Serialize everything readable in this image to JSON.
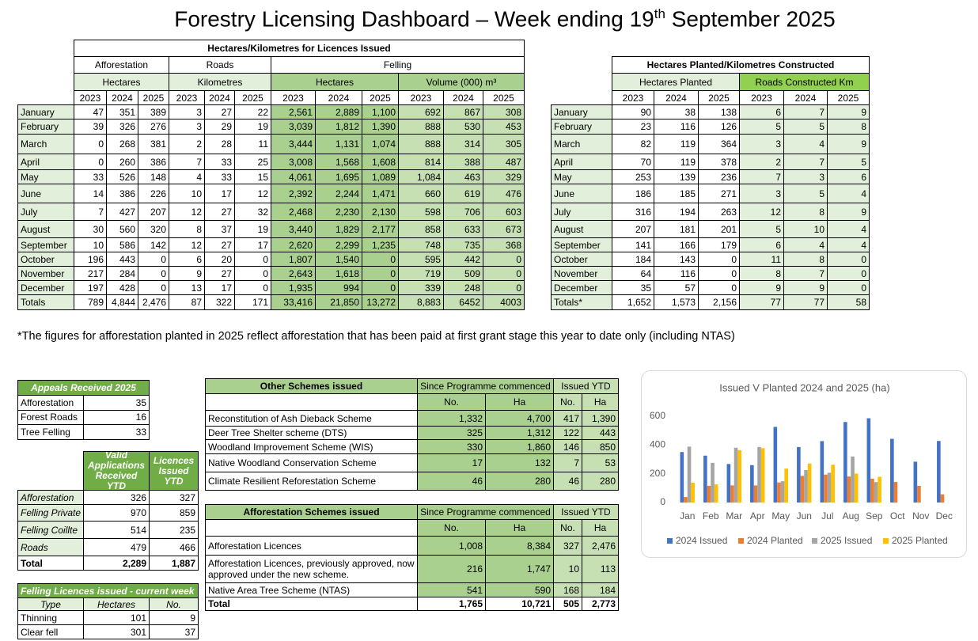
{
  "title": {
    "main": "Forestry Licensing Dashboard – Week ending 19",
    "sup": "th",
    "rest": "September 2025"
  },
  "licences_table": {
    "title": "Hectares/Kilometres for Licences Issued",
    "groups": [
      "Afforestation",
      "Roads",
      "Felling"
    ],
    "units": [
      "Hectares",
      "Kilometres",
      "Hectares",
      "Volume (000) m³"
    ],
    "years": [
      "2023",
      "2024",
      "2025",
      "2023",
      "2024",
      "2025",
      "2023",
      "2024",
      "2025",
      "2023",
      "2024",
      "2025"
    ],
    "rows": [
      {
        "label": "January",
        "values": [
          "47",
          "351",
          "389",
          "3",
          "27",
          "22",
          "2,561",
          "2,889",
          "1,100",
          "692",
          "867",
          "308"
        ]
      },
      {
        "label": "February",
        "values": [
          "39",
          "326",
          "276",
          "3",
          "29",
          "19",
          "3,039",
          "1,812",
          "1,390",
          "888",
          "530",
          "453"
        ]
      },
      {
        "label": "March",
        "values": [
          "0",
          "268",
          "381",
          "2",
          "28",
          "11",
          "3,444",
          "1,131",
          "1,074",
          "888",
          "314",
          "305"
        ]
      },
      {
        "label": "April",
        "values": [
          "0",
          "260",
          "386",
          "7",
          "33",
          "25",
          "3,008",
          "1,568",
          "1,608",
          "814",
          "388",
          "487"
        ]
      },
      {
        "label": "May",
        "values": [
          "33",
          "526",
          "148",
          "4",
          "33",
          "15",
          "4,061",
          "1,695",
          "1,089",
          "1,084",
          "463",
          "329"
        ]
      },
      {
        "label": "June",
        "values": [
          "14",
          "386",
          "226",
          "10",
          "17",
          "12",
          "2,392",
          "2,244",
          "1,471",
          "660",
          "619",
          "476"
        ]
      },
      {
        "label": "July",
        "values": [
          "7",
          "427",
          "207",
          "12",
          "27",
          "32",
          "2,468",
          "2,230",
          "2,130",
          "598",
          "706",
          "603"
        ]
      },
      {
        "label": "August",
        "values": [
          "30",
          "560",
          "320",
          "8",
          "37",
          "19",
          "3,440",
          "1,829",
          "2,177",
          "858",
          "633",
          "673"
        ]
      },
      {
        "label": "September",
        "values": [
          "10",
          "586",
          "142",
          "12",
          "27",
          "17",
          "2,620",
          "2,299",
          "1,235",
          "748",
          "735",
          "368"
        ]
      },
      {
        "label": "October",
        "values": [
          "196",
          "443",
          "0",
          "6",
          "20",
          "0",
          "1,807",
          "1,540",
          "0",
          "595",
          "442",
          "0"
        ]
      },
      {
        "label": "November",
        "values": [
          "217",
          "284",
          "0",
          "9",
          "27",
          "0",
          "2,643",
          "1,618",
          "0",
          "719",
          "509",
          "0"
        ]
      },
      {
        "label": "December",
        "values": [
          "197",
          "428",
          "0",
          "13",
          "17",
          "0",
          "1,935",
          "994",
          "0",
          "339",
          "248",
          "0"
        ]
      },
      {
        "label": "Totals",
        "values": [
          "789",
          "4,844",
          "2,476",
          "87",
          "322",
          "171",
          "33,416",
          "21,850",
          "13,272",
          "8,883",
          "6452",
          "4003"
        ]
      }
    ]
  },
  "planted_table": {
    "title": "Hectares Planted/Kilometres Constructed",
    "units": [
      "Hectares Planted",
      "Roads Constructed Km"
    ],
    "years": [
      "2023",
      "2024",
      "2025",
      "2023",
      "2024",
      "2025"
    ],
    "rows": [
      {
        "label": "January",
        "values": [
          "90",
          "38",
          "138",
          "6",
          "7",
          "9"
        ]
      },
      {
        "label": "February",
        "values": [
          "23",
          "116",
          "126",
          "5",
          "5",
          "8"
        ]
      },
      {
        "label": "March",
        "values": [
          "82",
          "119",
          "364",
          "3",
          "4",
          "9"
        ]
      },
      {
        "label": "April",
        "values": [
          "70",
          "119",
          "378",
          "2",
          "7",
          "5"
        ]
      },
      {
        "label": "May",
        "values": [
          "253",
          "139",
          "236",
          "7",
          "3",
          "6"
        ]
      },
      {
        "label": "June",
        "values": [
          "186",
          "185",
          "271",
          "3",
          "5",
          "4"
        ]
      },
      {
        "label": "July",
        "values": [
          "316",
          "194",
          "263",
          "12",
          "8",
          "9"
        ]
      },
      {
        "label": "August",
        "values": [
          "207",
          "181",
          "201",
          "5",
          "10",
          "4"
        ]
      },
      {
        "label": "September",
        "values": [
          "141",
          "166",
          "179",
          "6",
          "4",
          "4"
        ]
      },
      {
        "label": "October",
        "values": [
          "184",
          "143",
          "0",
          "11",
          "8",
          "0"
        ]
      },
      {
        "label": "November",
        "values": [
          "64",
          "116",
          "0",
          "8",
          "7",
          "0"
        ]
      },
      {
        "label": "December",
        "values": [
          "35",
          "57",
          "0",
          "9",
          "9",
          "0"
        ]
      },
      {
        "label": "Totals*",
        "values": [
          "1,652",
          "1,573",
          "2,156",
          "77",
          "77",
          "58"
        ]
      }
    ]
  },
  "footnote": "*The figures for afforestation planted in 2025 reflect afforestation that has been paid at first grant stage this year to date only (including NTAS)",
  "appeals": {
    "title": "Appeals Received 2025",
    "rows": [
      {
        "label": "Afforestation",
        "value": "35"
      },
      {
        "label": "Forest Roads",
        "value": "16"
      },
      {
        "label": "Tree Felling",
        "value": "33"
      }
    ]
  },
  "applications": {
    "headers": [
      "Valid Applications Received YTD",
      "Licences Issued YTD"
    ],
    "rows": [
      {
        "label": "Afforestation",
        "values": [
          "326",
          "327"
        ]
      },
      {
        "label": "Felling Private",
        "values": [
          "970",
          "859"
        ]
      },
      {
        "label": "Felling Coillte",
        "values": [
          "514",
          "235"
        ]
      },
      {
        "label": "Roads",
        "values": [
          "479",
          "466"
        ]
      },
      {
        "label": "Total",
        "values": [
          "2,289",
          "1,887"
        ]
      }
    ]
  },
  "felling_week": {
    "title": "Felling Licences issued - current week",
    "headers": [
      "Type",
      "Hectares",
      "No."
    ],
    "rows": [
      {
        "label": "Thinning",
        "values": [
          "101",
          "9"
        ]
      },
      {
        "label": "Clear fell",
        "values": [
          "301",
          "37"
        ]
      }
    ]
  },
  "other_schemes": {
    "title": "Other Schemes issued",
    "group_headers": [
      "Since Programme commenced",
      "Issued YTD"
    ],
    "sub_headers": [
      "No.",
      "Ha",
      "No.",
      "Ha"
    ],
    "rows": [
      {
        "label": "Reconstitution of Ash Dieback Scheme",
        "values": [
          "1,332",
          "4,700",
          "417",
          "1,390"
        ]
      },
      {
        "label": "Deer Tree Shelter scheme (DTS)",
        "values": [
          "325",
          "1,312",
          "122",
          "443"
        ]
      },
      {
        "label": "Woodland Improvement Scheme (WIS)",
        "values": [
          "330",
          "1,860",
          "146",
          "850"
        ]
      },
      {
        "label": "Native Woodland Conservation Scheme",
        "values": [
          "17",
          "132",
          "7",
          "53"
        ]
      },
      {
        "label": "Climate Resilient Reforestation Scheme",
        "values": [
          "46",
          "280",
          "46",
          "280"
        ]
      }
    ]
  },
  "afforestation_schemes": {
    "title": "Afforestation Schemes issued",
    "group_headers": [
      "Since Programme commenced",
      "Issued YTD"
    ],
    "sub_headers": [
      "No.",
      "Ha",
      "No.",
      "Ha"
    ],
    "rows": [
      {
        "label": "Afforestation Licences",
        "values": [
          "1,008",
          "8,384",
          "327",
          "2,476"
        ]
      },
      {
        "label": "Afforestation Licences, previously approved, now approved under the new scheme.",
        "values": [
          "216",
          "1,747",
          "10",
          "113"
        ]
      },
      {
        "label": "Native Area Tree Scheme (NTAS)",
        "values": [
          "541",
          "590",
          "168",
          "184"
        ]
      },
      {
        "label": "Total",
        "values": [
          "1,765",
          "10,721",
          "505",
          "2,773"
        ]
      }
    ]
  },
  "chart_data": {
    "type": "bar",
    "title": "Issued V Planted 2024 and 2025 (ha)",
    "categories": [
      "Jan",
      "Feb",
      "Mar",
      "Apr",
      "May",
      "Jun",
      "Jul",
      "Aug",
      "Sep",
      "Oct",
      "Nov",
      "Dec"
    ],
    "series": [
      {
        "name": "2024 Issued",
        "color": "#4472c4",
        "values": [
          351,
          326,
          268,
          260,
          526,
          386,
          427,
          560,
          586,
          443,
          284,
          428
        ]
      },
      {
        "name": "2024 Planted",
        "color": "#ed7d31",
        "values": [
          38,
          116,
          119,
          119,
          139,
          185,
          194,
          181,
          166,
          143,
          116,
          57
        ]
      },
      {
        "name": "2025 Issued",
        "color": "#a5a5a5",
        "values": [
          389,
          276,
          381,
          386,
          148,
          226,
          207,
          320,
          142,
          0,
          0,
          0
        ]
      },
      {
        "name": "2025 Planted",
        "color": "#ffc000",
        "values": [
          138,
          126,
          364,
          378,
          236,
          271,
          263,
          201,
          179,
          0,
          0,
          0
        ]
      }
    ],
    "ylim": [
      0,
      600
    ],
    "yticks": [
      0,
      200,
      400,
      600
    ],
    "legend": "bottom"
  }
}
